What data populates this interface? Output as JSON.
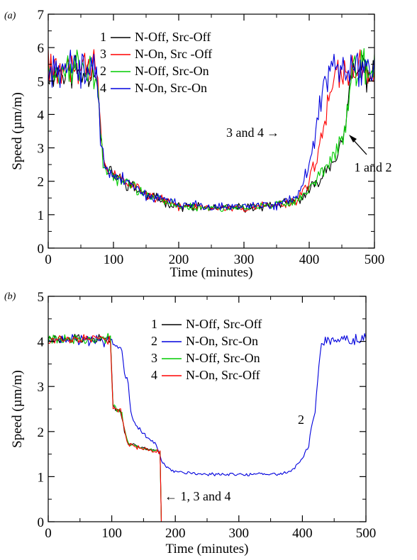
{
  "figure": {
    "panels": [
      {
        "id": "a",
        "label": "(a)"
      },
      {
        "id": "b",
        "label": "(b)"
      }
    ]
  },
  "chart_data": [
    {
      "panel": "(a)",
      "type": "line",
      "xlabel": "Time (minutes)",
      "ylabel": "Speed (µm/m)",
      "xlim": [
        0,
        500
      ],
      "ylim": [
        0,
        7
      ],
      "xticks": [
        0,
        100,
        200,
        300,
        400,
        500
      ],
      "yticks": [
        0,
        1,
        2,
        3,
        4,
        5,
        6,
        7
      ],
      "grid": false,
      "legend_position": "top-left",
      "noise": 0.45,
      "series": [
        {
          "legend_num": "1",
          "name": "N-Off, Src-Off",
          "color": "#000000",
          "x": [
            0,
            75,
            80,
            85,
            100,
            150,
            200,
            250,
            300,
            350,
            380,
            400,
            420,
            440,
            455,
            460,
            465,
            480,
            500
          ],
          "y": [
            5.3,
            5.3,
            3.5,
            2.5,
            2.2,
            1.6,
            1.25,
            1.2,
            1.2,
            1.3,
            1.4,
            1.7,
            2.2,
            2.8,
            3.3,
            4.5,
            5.2,
            5.3,
            5.3
          ]
        },
        {
          "legend_num": "3",
          "name": "N-On, Src -Off",
          "color": "#ff0000",
          "x": [
            0,
            75,
            80,
            85,
            100,
            150,
            200,
            250,
            300,
            350,
            380,
            400,
            415,
            425,
            435,
            450,
            500
          ],
          "y": [
            5.3,
            5.3,
            3.5,
            2.5,
            2.2,
            1.6,
            1.25,
            1.2,
            1.2,
            1.3,
            1.4,
            2.0,
            3.0,
            3.8,
            4.8,
            5.3,
            5.3
          ]
        },
        {
          "legend_num": "2",
          "name": "N-Off, Src-On",
          "color": "#00cc00",
          "x": [
            0,
            75,
            80,
            85,
            100,
            150,
            200,
            250,
            300,
            350,
            380,
            400,
            420,
            440,
            455,
            460,
            465,
            480,
            500
          ],
          "y": [
            5.3,
            5.3,
            3.5,
            2.5,
            2.2,
            1.6,
            1.25,
            1.2,
            1.2,
            1.3,
            1.4,
            1.8,
            2.3,
            2.9,
            3.4,
            4.6,
            5.2,
            5.3,
            5.3
          ]
        },
        {
          "legend_num": "4",
          "name": "N-On, Src-On",
          "color": "#0000dd",
          "x": [
            0,
            75,
            80,
            85,
            100,
            150,
            200,
            250,
            300,
            350,
            380,
            400,
            410,
            420,
            430,
            450,
            500
          ],
          "y": [
            5.3,
            5.3,
            3.5,
            2.5,
            2.2,
            1.6,
            1.3,
            1.25,
            1.25,
            1.3,
            1.5,
            2.4,
            3.5,
            4.5,
            5.2,
            5.4,
            5.3
          ]
        }
      ],
      "annotations": [
        {
          "text": "3 and 4",
          "arrow": "→",
          "points_to": [
            412,
            3.6
          ]
        },
        {
          "text": "1 and 2",
          "points_to": [
            458,
            3.5
          ]
        }
      ]
    },
    {
      "panel": "(b)",
      "type": "line",
      "xlabel": "Time (minutes)",
      "ylabel": "Speed (µm/m)",
      "xlim": [
        0,
        500
      ],
      "ylim": [
        0,
        5
      ],
      "xticks": [
        0,
        100,
        200,
        300,
        400,
        500
      ],
      "yticks": [
        0,
        1,
        2,
        3,
        4,
        5
      ],
      "grid": false,
      "legend_position": "top-center",
      "noise": 0.12,
      "series": [
        {
          "legend_num": "1",
          "name": "N-Off, Src-Off",
          "color": "#000000",
          "x": [
            0,
            99,
            101,
            115,
            121,
            125,
            140,
            160,
            176,
            177,
            178
          ],
          "y": [
            4.05,
            4.05,
            2.55,
            2.45,
            1.95,
            1.75,
            1.65,
            1.6,
            1.55,
            0.8,
            0
          ]
        },
        {
          "legend_num": "2",
          "name": "N-On, Src-On",
          "color": "#0000dd",
          "x": [
            0,
            100,
            115,
            120,
            125,
            130,
            135,
            150,
            170,
            180,
            200,
            250,
            300,
            350,
            380,
            395,
            400,
            410,
            415,
            420,
            425,
            430,
            450,
            500
          ],
          "y": [
            4.05,
            4.0,
            3.9,
            3.3,
            3.2,
            2.5,
            2.2,
            1.95,
            1.7,
            1.3,
            1.1,
            1.05,
            1.05,
            1.05,
            1.1,
            1.3,
            1.4,
            1.7,
            2.2,
            2.4,
            3.4,
            4.0,
            4.05,
            4.05
          ]
        },
        {
          "legend_num": "3",
          "name": "N-Off, Src-On",
          "color": "#00cc00",
          "x": [
            0,
            99,
            101,
            115,
            121,
            125,
            140,
            160,
            176,
            177,
            178
          ],
          "y": [
            4.05,
            4.05,
            2.55,
            2.45,
            1.95,
            1.75,
            1.65,
            1.6,
            1.55,
            0.8,
            0
          ]
        },
        {
          "legend_num": "4",
          "name": "N-On, Src-Off",
          "color": "#ff0000",
          "x": [
            0,
            99,
            101,
            115,
            121,
            125,
            140,
            160,
            176,
            177,
            178
          ],
          "y": [
            4.05,
            4.05,
            2.55,
            2.45,
            1.95,
            1.75,
            1.65,
            1.6,
            1.55,
            0.8,
            0
          ]
        }
      ],
      "annotations": [
        {
          "text": "2",
          "points_to": [
            412,
            2.4
          ]
        },
        {
          "text": "← 1, 3 and 4",
          "points_to": [
            180,
            0.4
          ]
        }
      ]
    }
  ]
}
